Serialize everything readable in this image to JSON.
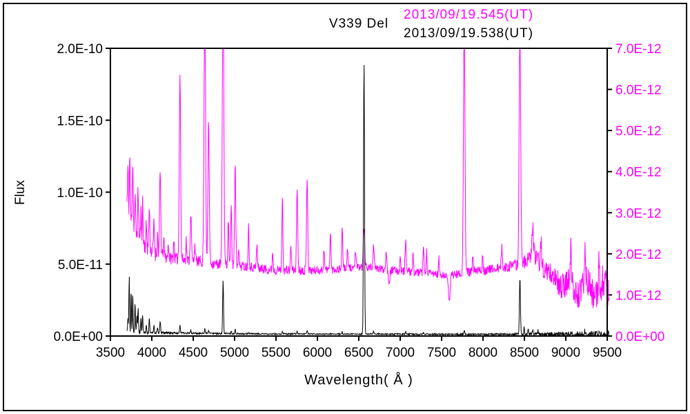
{
  "chart_data": {
    "type": "line",
    "title": "V339 Del",
    "xlabel": "Wavelength( Å )",
    "ylabel_left": "Flux",
    "x_range": [
      3500,
      9500
    ],
    "x_ticks": [
      3500,
      4000,
      4500,
      5000,
      5500,
      6000,
      6500,
      7000,
      7500,
      8000,
      8500,
      9000,
      9500
    ],
    "grid": false,
    "legend_position": "top-right",
    "sample_step": 4,
    "noise_seed": 11,
    "left_axis": {
      "scale": "absolute flux, left ticks in erg units",
      "range": [
        0,
        2.0
      ],
      "unit": "1e-10",
      "color": "#000000",
      "ticks": [
        {
          "v": 0.0,
          "label": "0.0E+00"
        },
        {
          "v": 0.5,
          "label": "5.0E-11"
        },
        {
          "v": 1.0,
          "label": "1.0E-10"
        },
        {
          "v": 1.5,
          "label": "1.5E-10"
        },
        {
          "v": 2.0,
          "label": "2.0E-10"
        }
      ]
    },
    "right_axis": {
      "scale": "absolute flux, right ticks in erg units",
      "range": [
        0,
        7.0
      ],
      "unit": "1e-12",
      "color": "#ff00ff",
      "ticks": [
        {
          "v": 0,
          "label": "0.0E+00"
        },
        {
          "v": 1,
          "label": "1.0E-12"
        },
        {
          "v": 2,
          "label": "2.0E-12"
        },
        {
          "v": 3,
          "label": "3.0E-12"
        },
        {
          "v": 4,
          "label": "4.0E-12"
        },
        {
          "v": 5,
          "label": "5.0E-12"
        },
        {
          "v": 6,
          "label": "6.0E-12"
        },
        {
          "v": 7,
          "label": "7.0E-12"
        }
      ]
    },
    "series": [
      {
        "name": "2013/09/19.545(UT)",
        "axis": "right",
        "color": "#ff00ff",
        "unit": "1e-12",
        "x_start": 3700,
        "x_end": 9520,
        "continuum": [
          [
            3700,
            3.2
          ],
          [
            3760,
            2.7
          ],
          [
            3850,
            2.35
          ],
          [
            3950,
            2.15
          ],
          [
            4050,
            2.0
          ],
          [
            4200,
            1.9
          ],
          [
            4400,
            1.85
          ],
          [
            4600,
            1.8
          ],
          [
            4800,
            1.75
          ],
          [
            5000,
            1.72
          ],
          [
            5200,
            1.68
          ],
          [
            5400,
            1.62
          ],
          [
            5600,
            1.6
          ],
          [
            5800,
            1.6
          ],
          [
            6000,
            1.6
          ],
          [
            6200,
            1.62
          ],
          [
            6400,
            1.66
          ],
          [
            6600,
            1.68
          ],
          [
            6800,
            1.62
          ],
          [
            7000,
            1.58
          ],
          [
            7200,
            1.55
          ],
          [
            7400,
            1.52
          ],
          [
            7550,
            1.45
          ],
          [
            7650,
            1.5
          ],
          [
            7800,
            1.55
          ],
          [
            8000,
            1.6
          ],
          [
            8200,
            1.65
          ],
          [
            8400,
            1.72
          ],
          [
            8550,
            1.85
          ],
          [
            8650,
            1.9
          ],
          [
            8750,
            1.6
          ],
          [
            8850,
            1.45
          ],
          [
            8950,
            1.2
          ],
          [
            9050,
            1.35
          ],
          [
            9150,
            0.95
          ],
          [
            9250,
            1.45
          ],
          [
            9350,
            0.85
          ],
          [
            9450,
            1.35
          ],
          [
            9520,
            1.0
          ]
        ],
        "peaks": [
          [
            3712,
            1.0,
            5
          ],
          [
            3735,
            1.5,
            5
          ],
          [
            3770,
            1.6,
            6
          ],
          [
            3798,
            0.8,
            5
          ],
          [
            3835,
            1.1,
            6
          ],
          [
            3869,
            0.7,
            5
          ],
          [
            3889,
            1.0,
            5
          ],
          [
            3935,
            0.5,
            5
          ],
          [
            3970,
            1.0,
            6
          ],
          [
            4026,
            0.7,
            6
          ],
          [
            4070,
            0.5,
            5
          ],
          [
            4101,
            2.0,
            7
          ],
          [
            4144,
            0.4,
            5
          ],
          [
            4200,
            0.35,
            5
          ],
          [
            4267,
            0.5,
            5
          ],
          [
            4340,
            4.5,
            8
          ],
          [
            4415,
            0.5,
            5
          ],
          [
            4471,
            1.2,
            7
          ],
          [
            4520,
            0.4,
            6
          ],
          [
            4640,
            6.5,
            9
          ],
          [
            4686,
            3.4,
            8
          ],
          [
            4861,
            7.0,
            9
          ],
          [
            4924,
            1.1,
            6
          ],
          [
            4959,
            1.4,
            6
          ],
          [
            5007,
            2.5,
            7
          ],
          [
            5048,
            0.5,
            5
          ],
          [
            5169,
            1.0,
            6
          ],
          [
            5270,
            0.55,
            6
          ],
          [
            5460,
            0.45,
            5
          ],
          [
            5577,
            1.7,
            6
          ],
          [
            5680,
            0.6,
            6
          ],
          [
            5755,
            2.0,
            7
          ],
          [
            5876,
            2.3,
            7
          ],
          [
            6080,
            0.5,
            6
          ],
          [
            6157,
            0.9,
            6
          ],
          [
            6300,
            1.0,
            6
          ],
          [
            6364,
            0.5,
            5
          ],
          [
            6460,
            0.4,
            6
          ],
          [
            6563,
            1.0,
            8
          ],
          [
            6678,
            0.6,
            6
          ],
          [
            6830,
            0.5,
            6
          ],
          [
            6867,
            -0.3,
            8
          ],
          [
            7002,
            0.4,
            5
          ],
          [
            7065,
            0.8,
            6
          ],
          [
            7155,
            0.4,
            5
          ],
          [
            7281,
            0.6,
            6
          ],
          [
            7320,
            0.5,
            5
          ],
          [
            7468,
            0.4,
            5
          ],
          [
            7594,
            -0.6,
            10
          ],
          [
            7773,
            6.2,
            9
          ],
          [
            7877,
            0.4,
            5
          ],
          [
            7995,
            0.4,
            5
          ],
          [
            8227,
            0.5,
            6
          ],
          [
            8446,
            6.0,
            9
          ],
          [
            8600,
            0.8,
            10
          ],
          [
            8700,
            0.6,
            6
          ],
          [
            9061,
            0.8,
            6
          ],
          [
            9229,
            0.7,
            6
          ],
          [
            9400,
            0.6,
            6
          ]
        ],
        "noise": [
          [
            3700,
            0.28
          ],
          [
            4200,
            0.15
          ],
          [
            5000,
            0.12
          ],
          [
            6500,
            0.1
          ],
          [
            7500,
            0.1
          ],
          [
            8300,
            0.12
          ],
          [
            8700,
            0.25
          ],
          [
            9000,
            0.32
          ],
          [
            9520,
            0.42
          ]
        ]
      },
      {
        "name": "2013/09/19.538(UT)",
        "axis": "left",
        "color": "#000000",
        "unit": "1e-10",
        "x_start": 3700,
        "x_end": 9520,
        "continuum": [
          [
            3700,
            0.03
          ],
          [
            3800,
            0.027
          ],
          [
            3900,
            0.025
          ],
          [
            4000,
            0.023
          ],
          [
            4200,
            0.021
          ],
          [
            4500,
            0.019
          ],
          [
            4800,
            0.017
          ],
          [
            5000,
            0.016
          ],
          [
            5500,
            0.015
          ],
          [
            6000,
            0.014
          ],
          [
            6500,
            0.014
          ],
          [
            7000,
            0.013
          ],
          [
            7500,
            0.012
          ],
          [
            8000,
            0.012
          ],
          [
            8500,
            0.013
          ],
          [
            9000,
            0.012
          ],
          [
            9520,
            0.012
          ]
        ],
        "peaks": [
          [
            3712,
            0.1,
            4
          ],
          [
            3727,
            0.38,
            4
          ],
          [
            3750,
            0.3,
            4
          ],
          [
            3770,
            0.27,
            4
          ],
          [
            3798,
            0.21,
            4
          ],
          [
            3820,
            0.12,
            4
          ],
          [
            3835,
            0.17,
            4
          ],
          [
            3869,
            0.1,
            4
          ],
          [
            3889,
            0.13,
            4
          ],
          [
            3935,
            0.06,
            4
          ],
          [
            3970,
            0.11,
            4
          ],
          [
            4026,
            0.05,
            4
          ],
          [
            4070,
            0.04,
            4
          ],
          [
            4101,
            0.08,
            5
          ],
          [
            4340,
            0.05,
            5
          ],
          [
            4471,
            0.02,
            4
          ],
          [
            4640,
            0.03,
            5
          ],
          [
            4686,
            0.02,
            5
          ],
          [
            4861,
            0.37,
            5
          ],
          [
            4959,
            0.02,
            4
          ],
          [
            5007,
            0.03,
            4
          ],
          [
            5169,
            0.012,
            4
          ],
          [
            5577,
            0.015,
            4
          ],
          [
            5755,
            0.02,
            4
          ],
          [
            5876,
            0.025,
            5
          ],
          [
            6300,
            0.015,
            4
          ],
          [
            6563,
            1.9,
            6
          ],
          [
            6678,
            0.02,
            4
          ],
          [
            7065,
            0.02,
            4
          ],
          [
            7281,
            0.012,
            4
          ],
          [
            7773,
            0.03,
            5
          ],
          [
            8446,
            0.4,
            6
          ],
          [
            8498,
            0.05,
            4
          ],
          [
            8545,
            0.04,
            4
          ],
          [
            8600,
            0.035,
            5
          ],
          [
            8665,
            0.03,
            4
          ],
          [
            9069,
            0.02,
            4
          ],
          [
            9229,
            0.02,
            4
          ]
        ],
        "noise": [
          [
            3700,
            0.018
          ],
          [
            4100,
            0.008
          ],
          [
            5000,
            0.005
          ],
          [
            6500,
            0.004
          ],
          [
            7500,
            0.005
          ],
          [
            8300,
            0.006
          ],
          [
            8800,
            0.014
          ],
          [
            9520,
            0.028
          ]
        ]
      }
    ]
  }
}
